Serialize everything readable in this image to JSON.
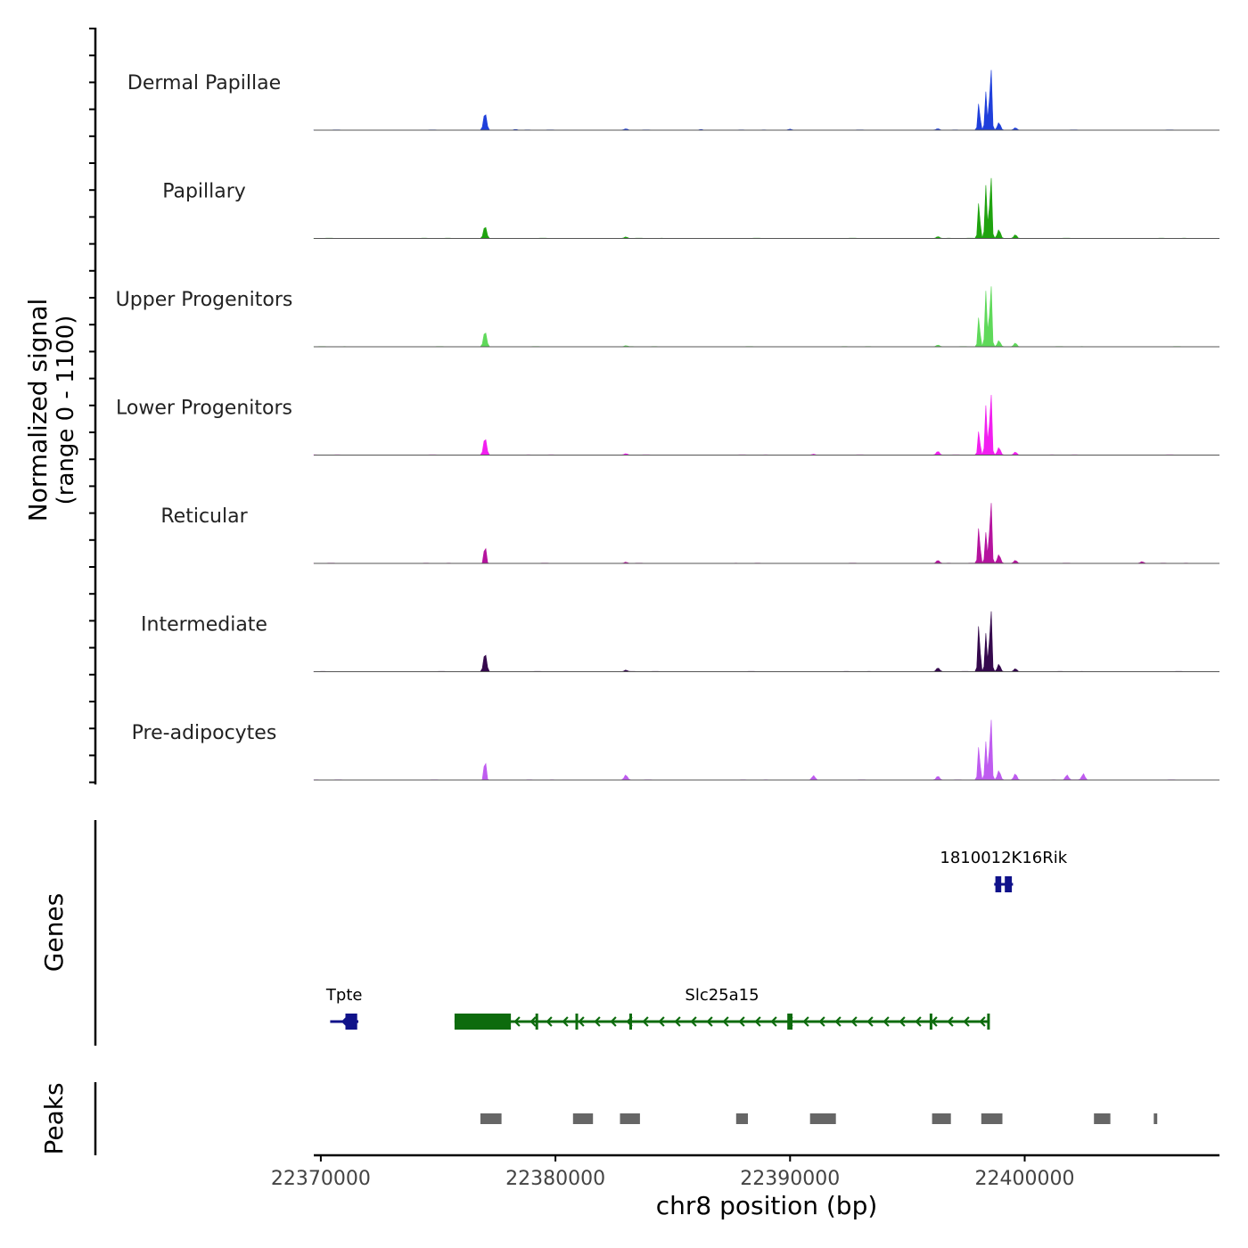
{
  "chart_data": {
    "type": "area",
    "title": "",
    "xlabel": "chr8 position (bp)",
    "ylabel_line1": "Normalized signal",
    "ylabel_line2": "(range 0 - 1100)",
    "ylim": [
      0,
      1100
    ],
    "xlim": [
      22369700,
      22408300
    ],
    "xticks": [
      22370000,
      22380000,
      22390000,
      22400000
    ],
    "xtick_labels": [
      "22370000",
      "22380000",
      "22390000",
      "22400000"
    ],
    "tracks": [
      {
        "name": "Dermal Papillae",
        "color": "#1f3fdb",
        "peaks": [
          [
            22377000,
            280
          ],
          [
            22378300,
            12
          ],
          [
            22383000,
            20
          ],
          [
            22386200,
            12
          ],
          [
            22390000,
            15
          ],
          [
            22396300,
            22
          ],
          [
            22398050,
            450
          ],
          [
            22398350,
            620
          ],
          [
            22398550,
            1100
          ],
          [
            22398900,
            120
          ],
          [
            22399600,
            40
          ]
        ]
      },
      {
        "name": "Papillary",
        "color": "#1fa30f",
        "peaks": [
          [
            22377000,
            200
          ],
          [
            22383000,
            25
          ],
          [
            22396300,
            30
          ],
          [
            22398050,
            600
          ],
          [
            22398350,
            860
          ],
          [
            22398550,
            1100
          ],
          [
            22398900,
            140
          ],
          [
            22399600,
            60
          ]
        ]
      },
      {
        "name": "Upper Progenitors",
        "color": "#5fd95a",
        "peaks": [
          [
            22377000,
            250
          ],
          [
            22383000,
            15
          ],
          [
            22396300,
            25
          ],
          [
            22398050,
            500
          ],
          [
            22398350,
            900
          ],
          [
            22398550,
            1100
          ],
          [
            22398900,
            100
          ],
          [
            22399600,
            60
          ]
        ]
      },
      {
        "name": "Lower Progenitors",
        "color": "#f21ff0",
        "peaks": [
          [
            22377000,
            280
          ],
          [
            22383000,
            20
          ],
          [
            22391000,
            15
          ],
          [
            22396300,
            60
          ],
          [
            22398050,
            400
          ],
          [
            22398350,
            800
          ],
          [
            22398550,
            1100
          ],
          [
            22398900,
            120
          ],
          [
            22399600,
            50
          ]
        ]
      },
      {
        "name": "Reticular",
        "color": "#b5139e",
        "peaks": [
          [
            22377000,
            320
          ],
          [
            22383000,
            20
          ],
          [
            22396300,
            50
          ],
          [
            22398050,
            600
          ],
          [
            22398350,
            500
          ],
          [
            22398550,
            1100
          ],
          [
            22398900,
            140
          ],
          [
            22399600,
            50
          ],
          [
            22405000,
            25
          ]
        ]
      },
      {
        "name": "Intermediate",
        "color": "#35094d",
        "peaks": [
          [
            22377000,
            300
          ],
          [
            22383000,
            25
          ],
          [
            22396300,
            60
          ],
          [
            22398050,
            780
          ],
          [
            22398350,
            620
          ],
          [
            22398550,
            1100
          ],
          [
            22398900,
            120
          ],
          [
            22399600,
            50
          ]
        ]
      },
      {
        "name": "Pre-adipocytes",
        "color": "#bf5cf0",
        "peaks": [
          [
            22377000,
            360
          ],
          [
            22383000,
            80
          ],
          [
            22391000,
            70
          ],
          [
            22396300,
            60
          ],
          [
            22398050,
            560
          ],
          [
            22398350,
            620
          ],
          [
            22398550,
            1100
          ],
          [
            22398900,
            150
          ],
          [
            22399600,
            100
          ],
          [
            22401800,
            80
          ],
          [
            22402500,
            100
          ]
        ]
      }
    ],
    "genes_label": "Genes",
    "genes": [
      {
        "name": "1810012K16Rik",
        "color": "#10128a",
        "start": 22398700,
        "end": 22399500,
        "row": 0,
        "exons": [
          [
            22398750,
            22399000
          ],
          [
            22399150,
            22399450
          ]
        ]
      },
      {
        "name": "Tpte",
        "color": "#10128a",
        "start": 22370400,
        "end": 22371600,
        "row": 1,
        "exons": [
          [
            22371050,
            22371550
          ]
        ]
      },
      {
        "name": "Slc25a15",
        "color": "#0d6b0d",
        "start": 22375700,
        "end": 22398500,
        "row": 1,
        "exons": [
          [
            22375700,
            22378100
          ],
          [
            22379150,
            22379250
          ],
          [
            22380850,
            22380950
          ],
          [
            22383150,
            22383250
          ],
          [
            22389880,
            22390100
          ],
          [
            22395950,
            22396050
          ],
          [
            22398400,
            22398500
          ]
        ]
      }
    ],
    "peaks_label": "Peaks",
    "peak_regions": [
      [
        22376800,
        22377700
      ],
      [
        22380750,
        22381600
      ],
      [
        22382750,
        22383600
      ],
      [
        22387700,
        22388200
      ],
      [
        22390850,
        22391950
      ],
      [
        22396050,
        22396850
      ],
      [
        22398150,
        22399050
      ],
      [
        22402950,
        22403650
      ],
      [
        22405500,
        22405650
      ]
    ]
  }
}
